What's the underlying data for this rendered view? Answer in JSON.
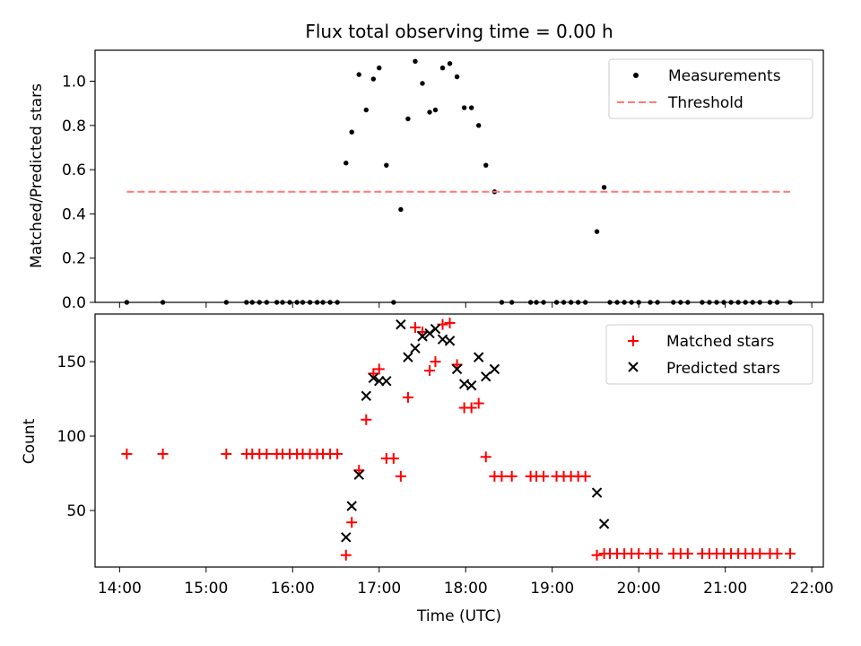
{
  "chart_data": [
    {
      "type": "scatter",
      "title": "Flux total observing time = 0.00 h",
      "xlabel": "",
      "ylabel": "Matched/Predicted stars",
      "xlim": [
        "13:43",
        "22:08"
      ],
      "ylim": [
        0,
        1.14
      ],
      "yticks": [
        0.0,
        0.2,
        0.4,
        0.6,
        0.8,
        1.0
      ],
      "ytick_labels": [
        "0.0",
        "0.2",
        "0.4",
        "0.6",
        "0.8",
        "1.0"
      ],
      "legend_position": "upper right",
      "series": [
        {
          "name": "Measurements",
          "marker": "dot",
          "color": "#000000",
          "points": [
            [
              "14:05",
              0
            ],
            [
              "14:30",
              0
            ],
            [
              "15:14",
              0
            ],
            [
              "15:28",
              0
            ],
            [
              "15:32",
              0
            ],
            [
              "15:37",
              0
            ],
            [
              "15:42",
              0
            ],
            [
              "15:49",
              0
            ],
            [
              "15:53",
              0
            ],
            [
              "15:58",
              0
            ],
            [
              "16:03",
              0
            ],
            [
              "16:07",
              0
            ],
            [
              "16:12",
              0
            ],
            [
              "16:17",
              0
            ],
            [
              "16:21",
              0
            ],
            [
              "16:26",
              0
            ],
            [
              "16:31",
              0
            ],
            [
              "16:37",
              0.63
            ],
            [
              "16:41",
              0.77
            ],
            [
              "16:46",
              1.03
            ],
            [
              "16:51",
              0.87
            ],
            [
              "16:56",
              1.01
            ],
            [
              "17:00",
              1.06
            ],
            [
              "17:05",
              0.62
            ],
            [
              "17:10",
              0
            ],
            [
              "17:15",
              0.42
            ],
            [
              "17:20",
              0.83
            ],
            [
              "17:25",
              1.09
            ],
            [
              "17:30",
              0.99
            ],
            [
              "17:35",
              0.86
            ],
            [
              "17:39",
              0.87
            ],
            [
              "17:44",
              1.06
            ],
            [
              "17:49",
              1.08
            ],
            [
              "17:54",
              1.02
            ],
            [
              "17:59",
              0.88
            ],
            [
              "18:04",
              0.88
            ],
            [
              "18:09",
              0.8
            ],
            [
              "18:14",
              0.62
            ],
            [
              "18:20",
              0.5
            ],
            [
              "18:25",
              0
            ],
            [
              "18:32",
              0
            ],
            [
              "18:45",
              0
            ],
            [
              "18:49",
              0
            ],
            [
              "18:54",
              0
            ],
            [
              "19:03",
              0
            ],
            [
              "19:08",
              0
            ],
            [
              "19:13",
              0
            ],
            [
              "19:18",
              0
            ],
            [
              "19:23",
              0
            ],
            [
              "19:31",
              0.32
            ],
            [
              "19:36",
              0.52
            ],
            [
              "19:40",
              0
            ],
            [
              "19:45",
              0
            ],
            [
              "19:50",
              0
            ],
            [
              "19:55",
              0
            ],
            [
              "20:00",
              0
            ],
            [
              "20:08",
              0
            ],
            [
              "20:13",
              0
            ],
            [
              "20:24",
              0
            ],
            [
              "20:29",
              0
            ],
            [
              "20:34",
              0
            ],
            [
              "20:44",
              0
            ],
            [
              "20:49",
              0
            ],
            [
              "20:54",
              0
            ],
            [
              "20:59",
              0
            ],
            [
              "21:04",
              0
            ],
            [
              "21:09",
              0
            ],
            [
              "21:14",
              0
            ],
            [
              "21:19",
              0
            ],
            [
              "21:24",
              0
            ],
            [
              "21:31",
              0
            ],
            [
              "21:36",
              0
            ],
            [
              "21:45",
              0
            ]
          ]
        },
        {
          "name": "Threshold",
          "marker": "dashed-line",
          "color": "#ff7777",
          "points": [
            [
              "14:05",
              0.5
            ],
            [
              "21:45",
              0.5
            ]
          ]
        }
      ]
    },
    {
      "type": "scatter",
      "title": "",
      "xlabel": "Time (UTC)",
      "ylabel": "Count",
      "xlim": [
        "13:43",
        "22:08"
      ],
      "ylim": [
        12,
        182
      ],
      "yticks": [
        50,
        100,
        150
      ],
      "ytick_labels": [
        "50",
        "100",
        "150"
      ],
      "xticks": [
        "14:00",
        "15:00",
        "16:00",
        "17:00",
        "18:00",
        "19:00",
        "20:00",
        "21:00",
        "22:00"
      ],
      "xtick_labels": [
        "14:00",
        "15:00",
        "16:00",
        "17:00",
        "18:00",
        "19:00",
        "20:00",
        "21:00",
        "22:00"
      ],
      "legend_position": "upper right",
      "series": [
        {
          "name": "Matched stars",
          "marker": "plus",
          "color": "#ff0000",
          "points": [
            [
              "14:05",
              88
            ],
            [
              "14:30",
              88
            ],
            [
              "15:14",
              88
            ],
            [
              "15:28",
              88
            ],
            [
              "15:32",
              88
            ],
            [
              "15:37",
              88
            ],
            [
              "15:42",
              88
            ],
            [
              "15:49",
              88
            ],
            [
              "15:53",
              88
            ],
            [
              "15:58",
              88
            ],
            [
              "16:03",
              88
            ],
            [
              "16:07",
              88
            ],
            [
              "16:12",
              88
            ],
            [
              "16:17",
              88
            ],
            [
              "16:21",
              88
            ],
            [
              "16:26",
              88
            ],
            [
              "16:31",
              88
            ],
            [
              "16:37",
              20
            ],
            [
              "16:41",
              42
            ],
            [
              "16:46",
              77
            ],
            [
              "16:51",
              111
            ],
            [
              "16:56",
              142
            ],
            [
              "17:00",
              145
            ],
            [
              "17:05",
              85
            ],
            [
              "17:10",
              85
            ],
            [
              "17:15",
              73
            ],
            [
              "17:20",
              126
            ],
            [
              "17:25",
              173
            ],
            [
              "17:30",
              170
            ],
            [
              "17:35",
              144
            ],
            [
              "17:39",
              150
            ],
            [
              "17:44",
              175
            ],
            [
              "17:49",
              176
            ],
            [
              "17:54",
              148
            ],
            [
              "17:59",
              119
            ],
            [
              "18:04",
              119
            ],
            [
              "18:09",
              122
            ],
            [
              "18:14",
              86
            ],
            [
              "18:20",
              73
            ],
            [
              "18:25",
              73
            ],
            [
              "18:32",
              73
            ],
            [
              "18:45",
              73
            ],
            [
              "18:49",
              73
            ],
            [
              "18:54",
              73
            ],
            [
              "19:03",
              73
            ],
            [
              "19:08",
              73
            ],
            [
              "19:13",
              73
            ],
            [
              "19:18",
              73
            ],
            [
              "19:23",
              73
            ],
            [
              "19:31",
              20
            ],
            [
              "19:36",
              21
            ],
            [
              "19:40",
              21
            ],
            [
              "19:45",
              21
            ],
            [
              "19:50",
              21
            ],
            [
              "19:55",
              21
            ],
            [
              "20:00",
              21
            ],
            [
              "20:08",
              21
            ],
            [
              "20:13",
              21
            ],
            [
              "20:24",
              21
            ],
            [
              "20:29",
              21
            ],
            [
              "20:34",
              21
            ],
            [
              "20:44",
              21
            ],
            [
              "20:49",
              21
            ],
            [
              "20:54",
              21
            ],
            [
              "20:59",
              21
            ],
            [
              "21:04",
              21
            ],
            [
              "21:09",
              21
            ],
            [
              "21:14",
              21
            ],
            [
              "21:19",
              21
            ],
            [
              "21:24",
              21
            ],
            [
              "21:31",
              21
            ],
            [
              "21:36",
              21
            ],
            [
              "21:45",
              21
            ]
          ]
        },
        {
          "name": "Predicted stars",
          "marker": "x",
          "color": "#000000",
          "points": [
            [
              "16:37",
              32
            ],
            [
              "16:41",
              53
            ],
            [
              "16:46",
              74
            ],
            [
              "16:51",
              127
            ],
            [
              "16:56",
              139
            ],
            [
              "17:00",
              137
            ],
            [
              "17:05",
              137
            ],
            [
              "17:15",
              175
            ],
            [
              "17:20",
              153
            ],
            [
              "17:25",
              159
            ],
            [
              "17:30",
              167
            ],
            [
              "17:35",
              169
            ],
            [
              "17:39",
              172
            ],
            [
              "17:44",
              165
            ],
            [
              "17:49",
              164
            ],
            [
              "17:54",
              145
            ],
            [
              "17:59",
              135
            ],
            [
              "18:04",
              134
            ],
            [
              "18:09",
              153
            ],
            [
              "18:14",
              140
            ],
            [
              "18:20",
              145
            ],
            [
              "19:31",
              62
            ],
            [
              "19:36",
              41
            ]
          ]
        }
      ]
    }
  ]
}
